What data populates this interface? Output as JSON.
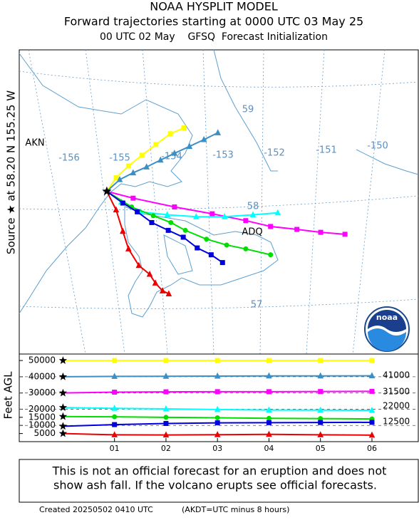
{
  "header": {
    "title": "NOAA HYSPLIT MODEL",
    "line2": "Forward trajectories starting at 0000 UTC 03 May 25",
    "line3": "00 UTC 02 May    GFSQ  Forecast Initialization"
  },
  "source_label": "Source ★ at 58.20 N 155.25 W",
  "map": {
    "lon_labels": [
      "-156",
      "-155",
      "-154",
      "-153",
      "-152",
      "-151",
      "-150"
    ],
    "lat_labels": [
      "59",
      "58",
      "57"
    ],
    "places": [
      "AKN",
      "ADQ"
    ],
    "logo": "noaa",
    "source": {
      "lon": -155.25,
      "lat": 58.2
    },
    "trajectories": [
      {
        "color": "#ffff00",
        "marker": "square",
        "lon": [
          -155.25,
          -155.07,
          -154.83,
          -154.57,
          -154.3,
          -154.02,
          -153.76
        ],
        "lat": [
          58.2,
          58.34,
          58.46,
          58.57,
          58.68,
          58.79,
          58.85
        ]
      },
      {
        "color": "#3a8fc6",
        "marker": "triangle",
        "lon": [
          -155.25,
          -155.0,
          -154.74,
          -154.48,
          -154.21,
          -153.94,
          -153.65,
          -153.37,
          -153.1
        ],
        "lat": [
          58.2,
          58.32,
          58.39,
          58.45,
          58.52,
          58.59,
          58.66,
          58.73,
          58.8
        ]
      },
      {
        "color": "#ff00ff",
        "marker": "square",
        "lon": [
          -155.25,
          -154.74,
          -153.94,
          -153.21,
          -152.56,
          -152.08,
          -151.57,
          -151.11,
          -150.64
        ],
        "lat": [
          58.2,
          58.13,
          58.04,
          57.97,
          57.9,
          57.84,
          57.81,
          57.78,
          57.76
        ]
      },
      {
        "color": "#00ffff",
        "marker": "triangle",
        "lon": [
          -155.25,
          -154.97,
          -154.6,
          -154.08,
          -153.52,
          -152.97,
          -152.42,
          -151.94
        ],
        "lat": [
          58.2,
          58.09,
          57.99,
          57.96,
          57.94,
          57.94,
          57.96,
          57.98
        ]
      },
      {
        "color": "#00dd00",
        "marker": "circle",
        "lon": [
          -155.25,
          -154.77,
          -154.35,
          -154.01,
          -153.73,
          -153.32,
          -152.93,
          -152.56,
          -152.08
        ],
        "lat": [
          58.2,
          58.04,
          57.95,
          57.88,
          57.8,
          57.71,
          57.65,
          57.61,
          57.55
        ]
      },
      {
        "color": "#0000dd",
        "marker": "square",
        "lon": [
          -155.25,
          -154.94,
          -154.66,
          -154.38,
          -154.06,
          -153.77,
          -153.5,
          -153.23,
          -153.01
        ],
        "lat": [
          58.2,
          58.08,
          57.99,
          57.88,
          57.8,
          57.73,
          57.62,
          57.55,
          57.47
        ]
      },
      {
        "color": "#ee0000",
        "marker": "triangle",
        "lon": [
          -155.25,
          -155.07,
          -154.94,
          -154.83,
          -154.63,
          -154.42,
          -154.31,
          -154.17,
          -154.05
        ],
        "lat": [
          58.2,
          58.01,
          57.79,
          57.61,
          57.44,
          57.35,
          57.26,
          57.18,
          57.15
        ]
      }
    ]
  },
  "chart_data": {
    "type": "line",
    "y_label": "Feet AGL",
    "x": [
      0,
      1,
      2,
      3,
      4,
      5,
      6
    ],
    "xlim": [
      -0.85,
      6.9
    ],
    "xticks": [
      {
        "value": 1,
        "label": "01"
      },
      {
        "value": 2,
        "label": "02"
      },
      {
        "value": 3,
        "label": "03"
      },
      {
        "value": 4,
        "label": "04"
      },
      {
        "value": 5,
        "label": "05"
      },
      {
        "value": 6,
        "label": "06"
      }
    ],
    "ylim": [
      0,
      54000
    ],
    "yticks": [
      5000,
      10000,
      15000,
      20000,
      30000,
      40000,
      50000
    ],
    "dashed_levels": [
      10000,
      20000,
      30000,
      40000
    ],
    "right_labels": [
      "41000",
      "31500",
      "22000",
      "12500"
    ],
    "series": [
      {
        "color": "#ffff00",
        "marker": "square",
        "values": [
          50000,
          50000,
          50000,
          50000,
          50000,
          50000,
          50000
        ]
      },
      {
        "color": "#3a8fc6",
        "marker": "triangle",
        "values": [
          40000,
          40200,
          40300,
          40400,
          40500,
          40500,
          40600
        ]
      },
      {
        "color": "#ff00ff",
        "marker": "square",
        "values": [
          30000,
          30500,
          30700,
          30800,
          30800,
          30900,
          31000
        ]
      },
      {
        "color": "#00ffff",
        "marker": "triangle",
        "values": [
          21000,
          20500,
          20200,
          19800,
          19500,
          19400,
          19300
        ]
      },
      {
        "color": "#00dd00",
        "marker": "circle",
        "values": [
          15500,
          15300,
          15000,
          14700,
          14400,
          14200,
          14000
        ]
      },
      {
        "color": "#0000dd",
        "marker": "square",
        "values": [
          9500,
          10500,
          11200,
          11600,
          11700,
          11800,
          11900
        ]
      },
      {
        "color": "#ee0000",
        "marker": "triangle",
        "values": [
          5000,
          4200,
          4100,
          4300,
          4500,
          4200,
          4000
        ]
      }
    ]
  },
  "disclaimer": [
    "This is not an official forecast for an eruption and does not",
    "show ash fall. If the volcano erupts see official forecasts."
  ],
  "footer": {
    "created": "Created 20250502 0410 UTC",
    "note": "(AKDT=UTC minus 8 hours)"
  }
}
